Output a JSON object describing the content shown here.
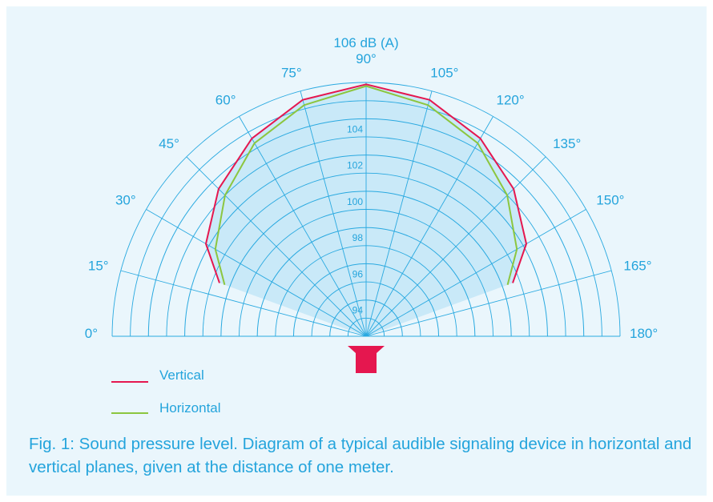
{
  "chart_data": {
    "type": "polar",
    "title": "106 dB (A)",
    "radial_axis": {
      "range": [
        92,
        106
      ],
      "tick_values": [
        94,
        96,
        98,
        100,
        102,
        104
      ],
      "tick_labels": [
        "94",
        "96",
        "98",
        "100",
        "102",
        "104"
      ]
    },
    "angle_axis": {
      "range": [
        0,
        180
      ],
      "tick_values": [
        0,
        15,
        30,
        45,
        60,
        75,
        90,
        105,
        120,
        135,
        150,
        165,
        180
      ],
      "tick_labels": [
        "0°",
        "15°",
        "30°",
        "45°",
        "60°",
        "75°",
        "90°",
        "105°",
        "120°",
        "135°",
        "150°",
        "165°",
        "180°"
      ]
    },
    "series": [
      {
        "name": "Vertical",
        "color": "#e5174f",
        "angles": [
          20,
          30,
          45,
          60,
          75,
          90,
          105,
          120,
          135,
          150,
          160
        ],
        "values": [
          100.6,
          102.2,
          103.5,
          104.6,
          105.5,
          105.9,
          105.5,
          104.6,
          103.5,
          102.2,
          100.6
        ]
      },
      {
        "name": "Horizontal",
        "color": "#8cc63f",
        "angles": [
          20,
          30,
          45,
          60,
          75,
          90,
          105,
          120,
          135,
          150,
          160
        ],
        "values": [
          100.3,
          101.6,
          103.0,
          104.3,
          105.2,
          105.8,
          105.2,
          104.3,
          103.0,
          101.6,
          100.3
        ]
      }
    ],
    "legend": {
      "placement": "bottom-left",
      "entries": [
        "Vertical",
        "Horizontal"
      ]
    },
    "colors": {
      "grid": "#29a9e0",
      "fill": "#c9e9f8",
      "device": "#e5174f",
      "panel_background": "#eaf6fc",
      "text": "#24a4dc"
    }
  },
  "caption": "Fig. 1: Sound pressure level. Diagram of a typical audible signaling device in horizontal and vertical planes, given at the distance of one meter."
}
